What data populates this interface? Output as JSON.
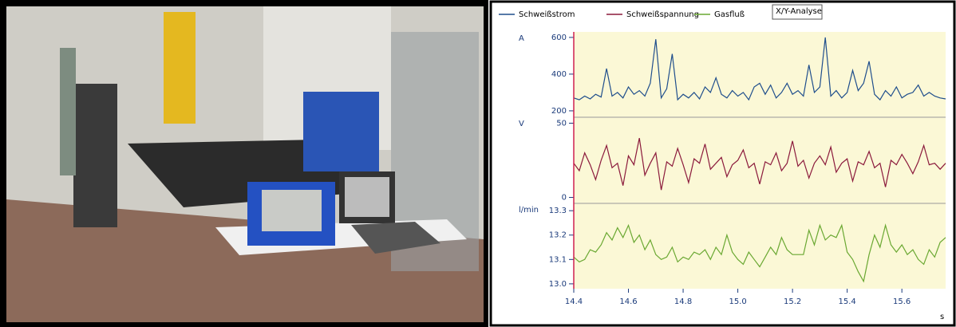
{
  "chart_data": {
    "type": "line",
    "annotation": "X/Y-Analyse",
    "xlabel": "s",
    "xlim": [
      14.4,
      15.76
    ],
    "xticks": [
      14.4,
      14.6,
      14.8,
      {
        "value": 15.0,
        "label": "15.0"
      },
      15.2,
      15.4,
      15.6
    ],
    "x": [
      14.4,
      14.42,
      14.44,
      14.46,
      14.48,
      14.5,
      14.52,
      14.54,
      14.56,
      14.58,
      14.6,
      14.62,
      14.64,
      14.66,
      14.68,
      14.7,
      14.72,
      14.74,
      14.76,
      14.78,
      14.8,
      14.82,
      14.84,
      14.86,
      14.88,
      14.9,
      14.92,
      14.94,
      14.96,
      14.98,
      15.0,
      15.02,
      15.04,
      15.06,
      15.08,
      15.1,
      15.12,
      15.14,
      15.16,
      15.18,
      15.2,
      15.22,
      15.24,
      15.26,
      15.28,
      15.3,
      15.32,
      15.34,
      15.36,
      15.38,
      15.4,
      15.42,
      15.44,
      15.46,
      15.48,
      15.5,
      15.52,
      15.54,
      15.56,
      15.58,
      15.6,
      15.62,
      15.64,
      15.66,
      15.68,
      15.7,
      15.72,
      15.74,
      15.76
    ],
    "panels": [
      {
        "unit": "A",
        "ylim": [
          165,
          630
        ],
        "yticks": [
          200,
          400,
          600
        ],
        "series": [
          {
            "name": "Schweißstrom",
            "color": "#1f4e8c",
            "values": [
              270,
              260,
              280,
              265,
              290,
              275,
              430,
              280,
              300,
              270,
              330,
              290,
              310,
              280,
              350,
              590,
              270,
              320,
              510,
              260,
              290,
              270,
              300,
              265,
              330,
              300,
              380,
              290,
              270,
              310,
              280,
              300,
              260,
              330,
              350,
              290,
              340,
              270,
              300,
              350,
              290,
              310,
              280,
              450,
              300,
              330,
              600,
              280,
              310,
              270,
              300,
              420,
              310,
              350,
              470,
              290,
              260,
              310,
              280,
              330,
              270,
              290,
              300,
              340,
              280,
              300,
              280,
              270,
              265
            ]
          }
        ]
      },
      {
        "unit": "V",
        "ylim": [
          -4,
          54
        ],
        "yticks": [
          0,
          50
        ],
        "series": [
          {
            "name": "Schweißspannung",
            "color": "#8b1a3c",
            "values": [
              23,
              18,
              30,
              22,
              12,
              25,
              35,
              20,
              23,
              8,
              28,
              22,
              40,
              15,
              23,
              30,
              5,
              24,
              21,
              33,
              22,
              10,
              26,
              23,
              36,
              19,
              23,
              27,
              14,
              22,
              25,
              32,
              20,
              23,
              9,
              24,
              22,
              30,
              18,
              23,
              38,
              21,
              25,
              13,
              23,
              28,
              22,
              34,
              17,
              23,
              26,
              11,
              24,
              22,
              31,
              20,
              23,
              7,
              25,
              22,
              29,
              23,
              16,
              24,
              35,
              22,
              23,
              19,
              23
            ]
          }
        ]
      },
      {
        "unit": "l/min",
        "ylim": [
          12.98,
          13.33
        ],
        "yticks": [
          13.3,
          13.2,
          13.1,
          {
            "value": 13.0,
            "label": "13.0"
          }
        ],
        "series": [
          {
            "name": "Gasfluß",
            "color": "#6aa832",
            "values": [
              13.11,
              13.09,
              13.1,
              13.14,
              13.13,
              13.16,
              13.21,
              13.18,
              13.23,
              13.19,
              13.24,
              13.17,
              13.2,
              13.14,
              13.18,
              13.12,
              13.1,
              13.11,
              13.15,
              13.09,
              13.11,
              13.1,
              13.13,
              13.12,
              13.14,
              13.1,
              13.15,
              13.12,
              13.2,
              13.13,
              13.1,
              13.08,
              13.13,
              13.1,
              13.07,
              13.11,
              13.15,
              13.12,
              13.19,
              13.14,
              13.12,
              13.12,
              13.12,
              13.22,
              13.16,
              13.24,
              13.18,
              13.2,
              13.19,
              13.24,
              13.13,
              13.1,
              13.05,
              13.01,
              13.12,
              13.2,
              13.15,
              13.24,
              13.16,
              13.13,
              13.16,
              13.12,
              13.14,
              13.1,
              13.08,
              13.14,
              13.11,
              13.17,
              13.19
            ]
          }
        ]
      }
    ]
  }
}
